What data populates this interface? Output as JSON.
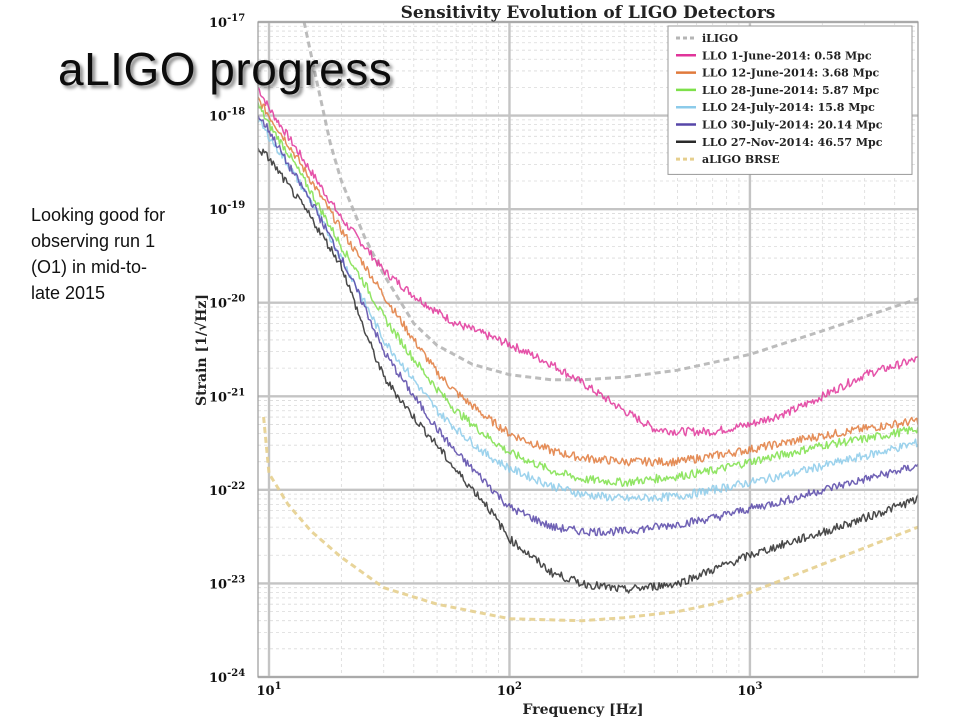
{
  "slide": {
    "title": "aLIGO progress",
    "note": "Looking good for observing run 1 (O1) in mid-to-late 2015"
  },
  "chart_data": {
    "type": "line",
    "title": "Sensitivity Evolution of LIGO Detectors",
    "xlabel": "Frequency [Hz]",
    "ylabel": "Strain [1/√Hz]",
    "xscale": "log",
    "yscale": "log",
    "xlim": [
      9,
      5000
    ],
    "ylim": [
      1e-24,
      1e-17
    ],
    "grid": true,
    "legend_position": "top-right",
    "x_ticks": [
      {
        "value": 10,
        "base": "10",
        "exp": "1"
      },
      {
        "value": 100,
        "base": "10",
        "exp": "2"
      },
      {
        "value": 1000,
        "base": "10",
        "exp": "3"
      }
    ],
    "y_ticks": [
      {
        "value": 1e-17,
        "base": "10",
        "exp": "-17"
      },
      {
        "value": 1e-18,
        "base": "10",
        "exp": "-18"
      },
      {
        "value": 1e-19,
        "base": "10",
        "exp": "-19"
      },
      {
        "value": 1e-20,
        "base": "10",
        "exp": "-20"
      },
      {
        "value": 1e-21,
        "base": "10",
        "exp": "-21"
      },
      {
        "value": 1e-22,
        "base": "10",
        "exp": "-22"
      },
      {
        "value": 1e-23,
        "base": "10",
        "exp": "-23"
      },
      {
        "value": 1e-24,
        "base": "10",
        "exp": "-24"
      }
    ],
    "series": [
      {
        "name": "iLIGO",
        "color": "#b5b5b5",
        "dashed": true,
        "points": [
          [
            14,
            1e-17
          ],
          [
            16,
            2e-18
          ],
          [
            18,
            5e-19
          ],
          [
            20,
            2e-19
          ],
          [
            25,
            5e-20
          ],
          [
            30,
            2e-20
          ],
          [
            40,
            6e-21
          ],
          [
            50,
            3.5e-21
          ],
          [
            70,
            2.2e-21
          ],
          [
            100,
            1.7e-21
          ],
          [
            150,
            1.5e-21
          ],
          [
            200,
            1.5e-21
          ],
          [
            300,
            1.6e-21
          ],
          [
            500,
            1.9e-21
          ],
          [
            1000,
            2.8e-21
          ],
          [
            2000,
            5e-21
          ],
          [
            5000,
            1.1e-20
          ]
        ]
      },
      {
        "name": "LLO   1-June-2014:  0.58 Mpc",
        "color": "#e0359a",
        "points": [
          [
            9,
            2e-18
          ],
          [
            10,
            1.2e-18
          ],
          [
            12,
            6e-19
          ],
          [
            15,
            2.5e-19
          ],
          [
            20,
            8e-20
          ],
          [
            25,
            4e-20
          ],
          [
            30,
            2.2e-20
          ],
          [
            40,
            1.2e-20
          ],
          [
            50,
            8e-21
          ],
          [
            60,
            6e-21
          ],
          [
            80,
            4.5e-21
          ],
          [
            100,
            3.6e-21
          ],
          [
            150,
            2.2e-21
          ],
          [
            200,
            1.4e-21
          ],
          [
            300,
            7e-22
          ],
          [
            400,
            4.5e-22
          ],
          [
            500,
            4.2e-22
          ],
          [
            700,
            4.2e-22
          ],
          [
            1000,
            5e-22
          ],
          [
            1500,
            7e-22
          ],
          [
            2000,
            1e-21
          ],
          [
            3000,
            1.7e-21
          ],
          [
            5000,
            2.5e-21
          ]
        ]
      },
      {
        "name": "LLO 12-June-2014:  3.68 Mpc",
        "color": "#e07a3c",
        "points": [
          [
            9,
            1.5e-18
          ],
          [
            10,
            1e-18
          ],
          [
            12,
            5e-19
          ],
          [
            15,
            2e-19
          ],
          [
            20,
            6e-20
          ],
          [
            25,
            2.5e-20
          ],
          [
            30,
            1.2e-20
          ],
          [
            40,
            4e-21
          ],
          [
            50,
            1.8e-21
          ],
          [
            60,
            1.1e-21
          ],
          [
            80,
            6e-22
          ],
          [
            100,
            4e-22
          ],
          [
            150,
            2.6e-22
          ],
          [
            200,
            2.2e-22
          ],
          [
            300,
            2e-22
          ],
          [
            500,
            2e-22
          ],
          [
            700,
            2.3e-22
          ],
          [
            1000,
            2.7e-22
          ],
          [
            1500,
            3.3e-22
          ],
          [
            2000,
            3.8e-22
          ],
          [
            3000,
            4.5e-22
          ],
          [
            5000,
            5.5e-22
          ]
        ]
      },
      {
        "name": "LLO 28-June-2014:  5.87 Mpc",
        "color": "#7ee04a",
        "points": [
          [
            9,
            1.3e-18
          ],
          [
            10,
            8e-19
          ],
          [
            12,
            4e-19
          ],
          [
            15,
            1.5e-19
          ],
          [
            20,
            4e-20
          ],
          [
            25,
            1.6e-20
          ],
          [
            30,
            7e-21
          ],
          [
            40,
            2.5e-21
          ],
          [
            50,
            1.2e-21
          ],
          [
            60,
            7e-22
          ],
          [
            80,
            3.8e-22
          ],
          [
            100,
            2.5e-22
          ],
          [
            150,
            1.6e-22
          ],
          [
            200,
            1.3e-22
          ],
          [
            300,
            1.2e-22
          ],
          [
            500,
            1.4e-22
          ],
          [
            700,
            1.6e-22
          ],
          [
            1000,
            2e-22
          ],
          [
            1500,
            2.5e-22
          ],
          [
            2000,
            3e-22
          ],
          [
            3000,
            3.5e-22
          ],
          [
            5000,
            4.5e-22
          ]
        ]
      },
      {
        "name": "LLO 24-July-2014:  15.8 Mpc",
        "color": "#8ccbea",
        "points": [
          [
            9,
            9e-19
          ],
          [
            10,
            6e-19
          ],
          [
            12,
            3e-19
          ],
          [
            15,
            1.2e-19
          ],
          [
            20,
            3e-20
          ],
          [
            25,
            1e-20
          ],
          [
            30,
            4e-21
          ],
          [
            40,
            1.5e-21
          ],
          [
            50,
            7e-22
          ],
          [
            60,
            4.5e-22
          ],
          [
            80,
            2.4e-22
          ],
          [
            100,
            1.7e-22
          ],
          [
            150,
            1.1e-22
          ],
          [
            200,
            9e-23
          ],
          [
            300,
            8e-23
          ],
          [
            500,
            8.5e-23
          ],
          [
            700,
            1e-22
          ],
          [
            1000,
            1.2e-22
          ],
          [
            1500,
            1.5e-22
          ],
          [
            2000,
            1.8e-22
          ],
          [
            3000,
            2.3e-22
          ],
          [
            5000,
            3.2e-22
          ]
        ]
      },
      {
        "name": "LLO 30-July-2014:  20.14 Mpc",
        "color": "#5746a8",
        "points": [
          [
            9,
            1e-18
          ],
          [
            10,
            7e-19
          ],
          [
            12,
            3e-19
          ],
          [
            15,
            1.2e-19
          ],
          [
            20,
            3e-20
          ],
          [
            25,
            9e-21
          ],
          [
            30,
            3e-21
          ],
          [
            40,
            1e-21
          ],
          [
            50,
            4.5e-22
          ],
          [
            60,
            2.5e-22
          ],
          [
            80,
            1.2e-22
          ],
          [
            100,
            6.5e-23
          ],
          [
            150,
            4e-23
          ],
          [
            200,
            3.6e-23
          ],
          [
            300,
            3.6e-23
          ],
          [
            500,
            4.3e-23
          ],
          [
            700,
            5e-23
          ],
          [
            1000,
            6.3e-23
          ],
          [
            1500,
            8e-23
          ],
          [
            2000,
            1e-22
          ],
          [
            3000,
            1.3e-22
          ],
          [
            5000,
            1.8e-22
          ]
        ]
      },
      {
        "name": "LLO 27-Nov-2014:  46.57 Mpc",
        "color": "#2a2a2a",
        "points": [
          [
            9,
            4.5e-19
          ],
          [
            10,
            3.5e-19
          ],
          [
            12,
            1.8e-19
          ],
          [
            15,
            8e-20
          ],
          [
            20,
            2.5e-20
          ],
          [
            25,
            5e-21
          ],
          [
            30,
            1.6e-21
          ],
          [
            40,
            6e-22
          ],
          [
            50,
            3e-22
          ],
          [
            60,
            1.6e-22
          ],
          [
            80,
            7e-23
          ],
          [
            100,
            3e-23
          ],
          [
            150,
            1.3e-23
          ],
          [
            200,
            1e-23
          ],
          [
            300,
            8.5e-24
          ],
          [
            500,
            1e-23
          ],
          [
            700,
            1.4e-23
          ],
          [
            1000,
            2e-23
          ],
          [
            1500,
            2.8e-23
          ],
          [
            2000,
            3.5e-23
          ],
          [
            3000,
            5e-23
          ],
          [
            5000,
            8e-23
          ]
        ]
      },
      {
        "name": "aLIGO BRSE",
        "color": "#e6cf8e",
        "dashed": true,
        "points": [
          [
            9.5,
            6e-22
          ],
          [
            10,
            1.5e-22
          ],
          [
            12,
            7e-23
          ],
          [
            15,
            3.6e-23
          ],
          [
            20,
            1.9e-23
          ],
          [
            30,
            9e-24
          ],
          [
            50,
            6e-24
          ],
          [
            100,
            4.2e-24
          ],
          [
            200,
            4e-24
          ],
          [
            300,
            4.3e-24
          ],
          [
            500,
            5e-24
          ],
          [
            700,
            6e-24
          ],
          [
            1000,
            8e-24
          ],
          [
            2000,
            1.6e-23
          ],
          [
            5000,
            4e-23
          ]
        ]
      }
    ]
  }
}
